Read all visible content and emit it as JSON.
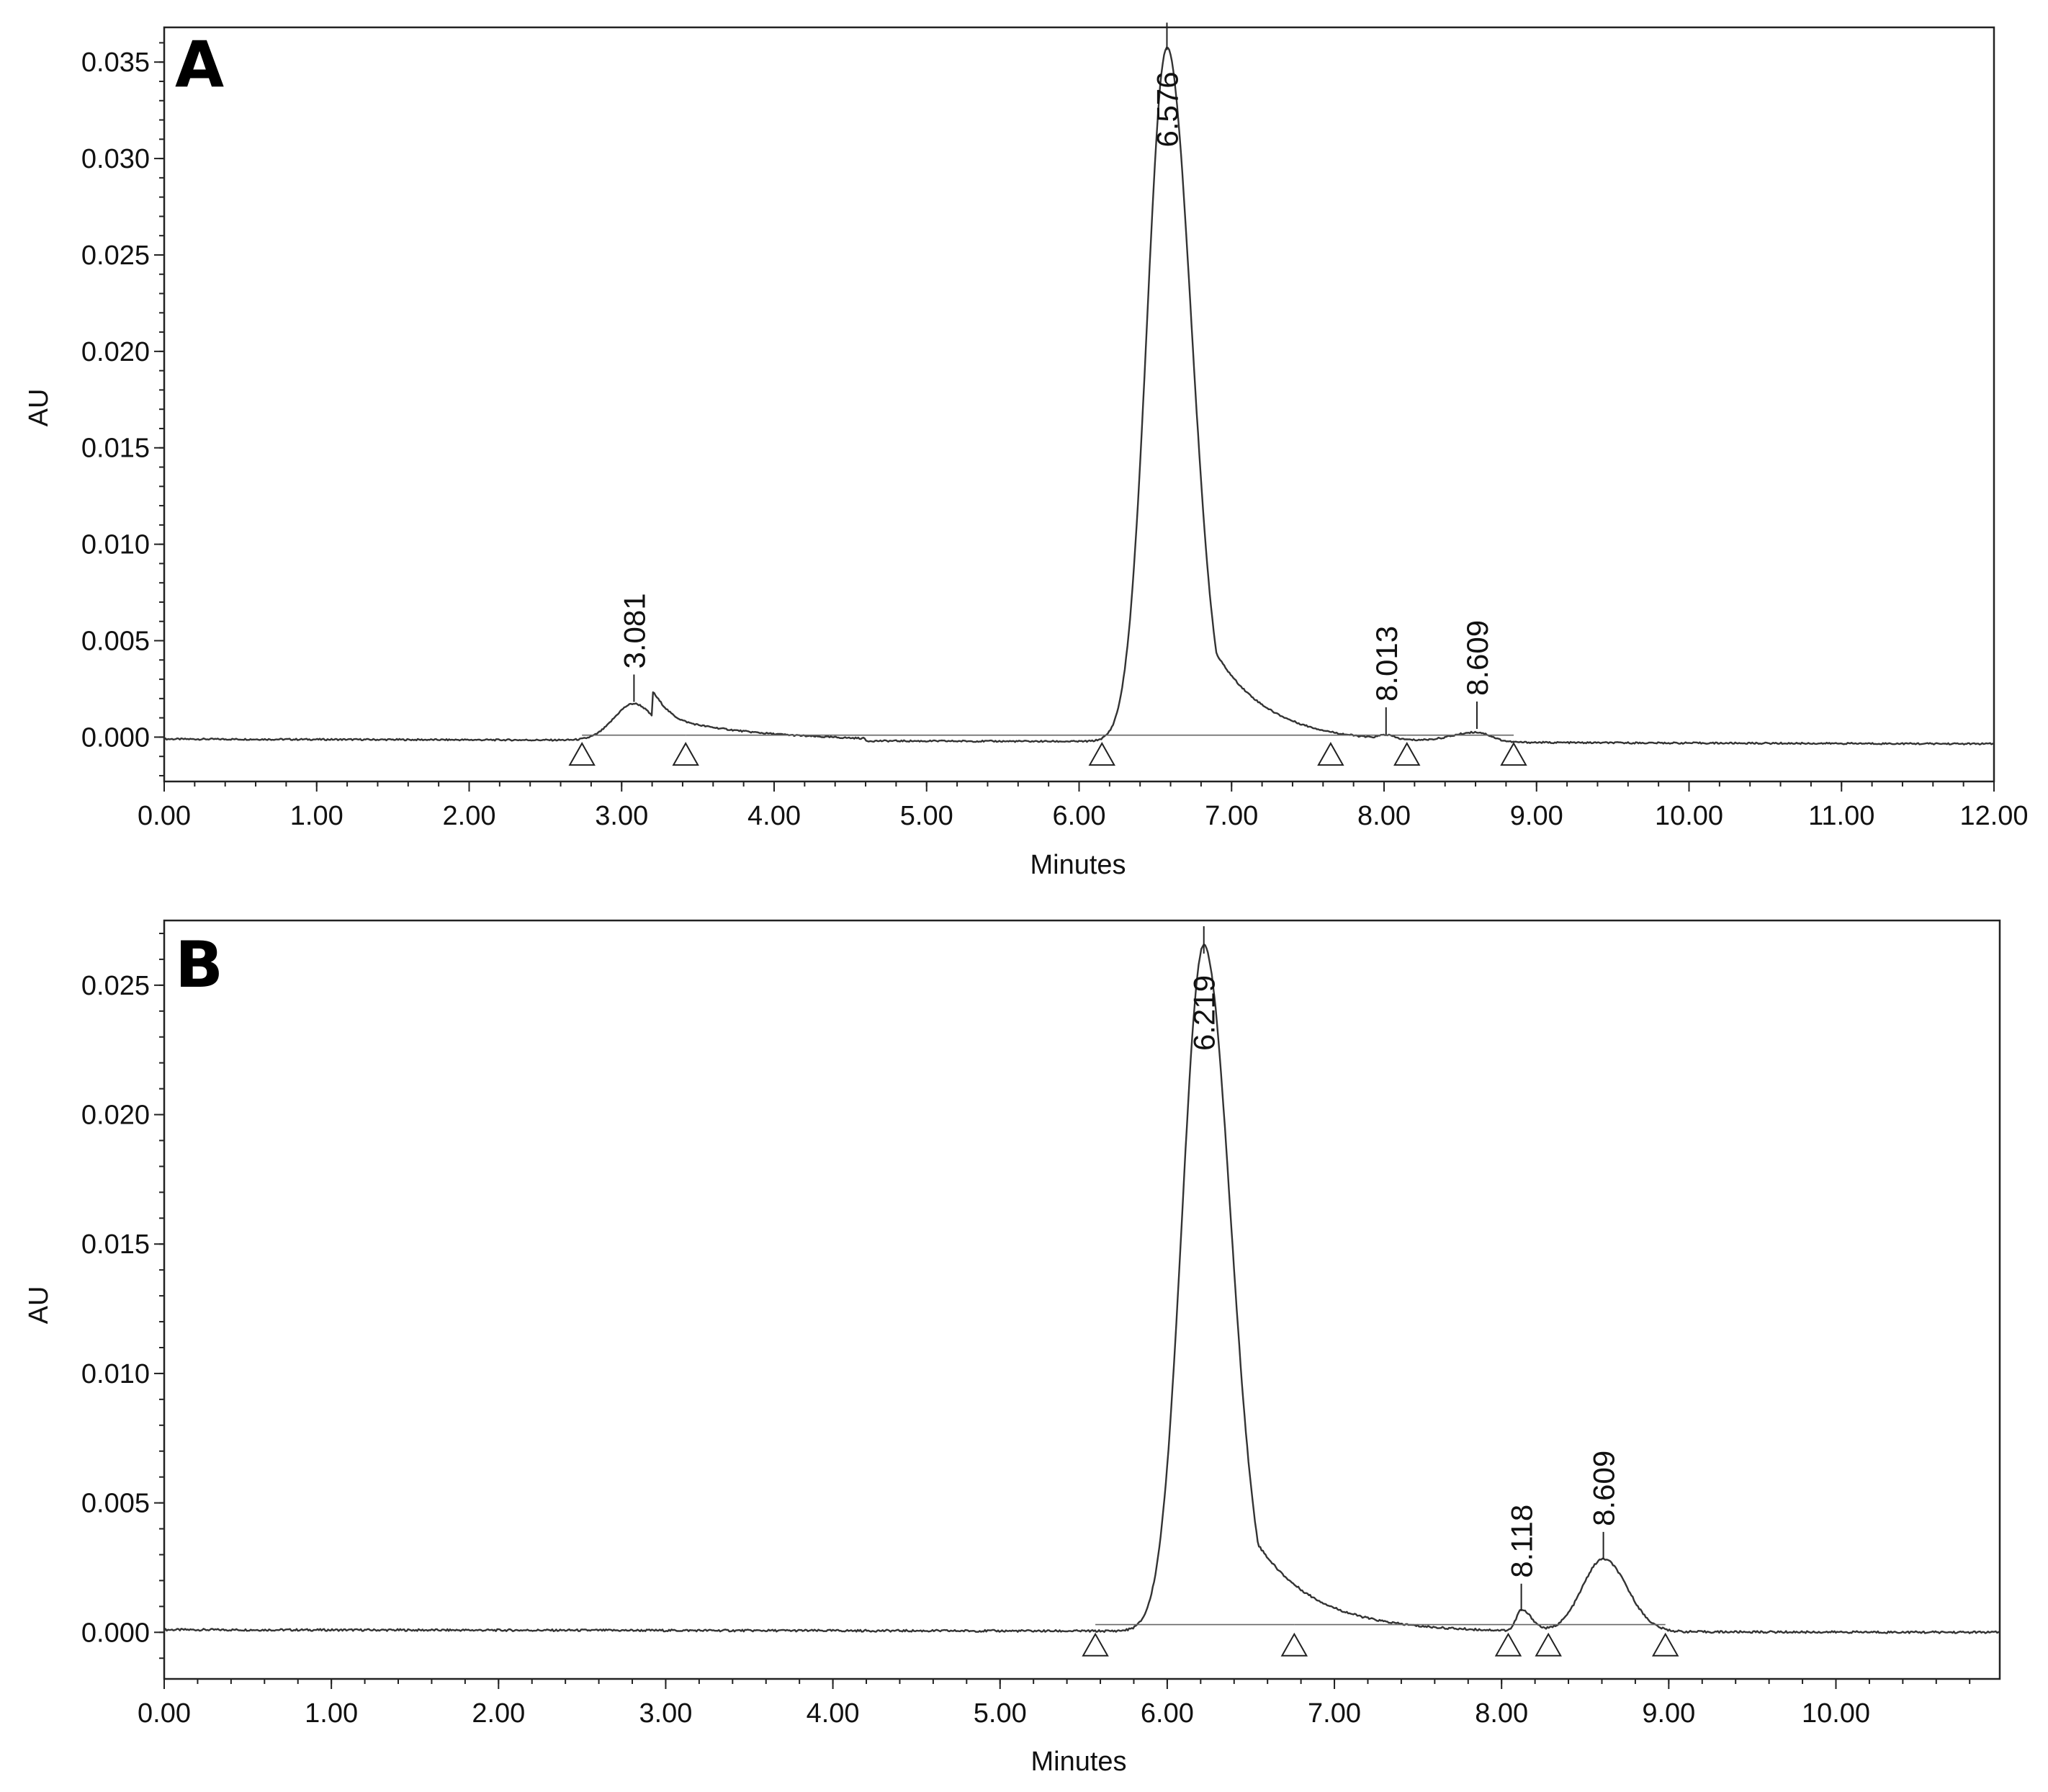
{
  "chart_data": [
    {
      "type": "line",
      "panel_label": "A",
      "xlabel": "Minutes",
      "ylabel": "AU",
      "xlim": [
        0,
        12
      ],
      "ylim": [
        -0.0023,
        0.0368
      ],
      "x_ticks": [
        "0.00",
        "1.00",
        "2.00",
        "3.00",
        "4.00",
        "5.00",
        "6.00",
        "7.00",
        "8.00",
        "9.00",
        "10.00",
        "11.00",
        "12.00"
      ],
      "y_ticks": [
        "0.000",
        "0.005",
        "0.010",
        "0.015",
        "0.020",
        "0.025",
        "0.030",
        "0.035"
      ],
      "baseline_level": -0.0001,
      "peaks": [
        {
          "rt": 3.081,
          "label": "3.081",
          "height": 0.0019,
          "start": 2.74,
          "end": 3.42
        },
        {
          "rt": 6.576,
          "label": "6.576",
          "height": 0.036,
          "start": 6.15,
          "end": 7.65
        },
        {
          "rt": 8.013,
          "label": "8.013",
          "height": 0.0002,
          "start": 7.9,
          "end": 8.15
        },
        {
          "rt": 8.609,
          "label": "8.609",
          "height": 0.0005,
          "start": 8.2,
          "end": 8.85
        }
      ],
      "integration_markers": [
        2.74,
        3.42,
        6.15,
        7.65,
        8.15,
        8.85
      ]
    },
    {
      "type": "line",
      "panel_label": "B",
      "xlabel": "Minutes",
      "ylabel": "AU",
      "xlim": [
        0,
        10.98
      ],
      "ylim": [
        -0.0018,
        0.0275
      ],
      "x_ticks": [
        "0.00",
        "1.00",
        "2.00",
        "3.00",
        "4.00",
        "5.00",
        "6.00",
        "7.00",
        "8.00",
        "9.00",
        "10.00"
      ],
      "y_ticks": [
        "0.000",
        "0.005",
        "0.010",
        "0.015",
        "0.020",
        "0.025"
      ],
      "baseline_level": 0.0001,
      "peaks": [
        {
          "rt": 6.219,
          "label": "6.219",
          "height": 0.0265,
          "start": 5.57,
          "end": 6.76
        },
        {
          "rt": 8.118,
          "label": "8.118",
          "height": 0.0008,
          "start": 8.04,
          "end": 8.28
        },
        {
          "rt": 8.609,
          "label": "8.609",
          "height": 0.0028,
          "start": 8.28,
          "end": 8.98
        }
      ],
      "integration_markers": [
        5.57,
        6.76,
        8.04,
        8.28,
        8.98
      ]
    }
  ]
}
